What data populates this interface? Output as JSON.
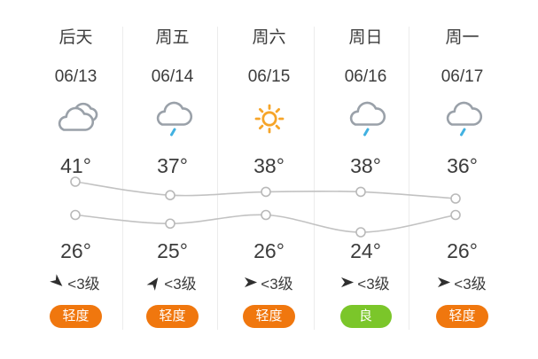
{
  "colors": {
    "badge_orange": "#f0770e",
    "badge_green": "#7bc62a",
    "rain_blue": "#41b1e1",
    "sun_orange": "#f6a529",
    "cloud_gray": "#9aa1a9",
    "chart_line": "#c2c2c2",
    "text": "#3c3c3c"
  },
  "columns": [
    {
      "day": "后天",
      "date": "06/13",
      "icon": "cloudy-icon",
      "high": "41°",
      "low": "26°",
      "wind": "<3级",
      "wind_dir": "southeast",
      "aqi": {
        "label": "轻度",
        "level": "orange"
      }
    },
    {
      "day": "周五",
      "date": "06/14",
      "icon": "light-rain-icon",
      "high": "37°",
      "low": "25°",
      "wind": "<3级",
      "wind_dir": "northeast",
      "aqi": {
        "label": "轻度",
        "level": "orange"
      }
    },
    {
      "day": "周六",
      "date": "06/15",
      "icon": "sunny-icon",
      "high": "38°",
      "low": "26°",
      "wind": "<3级",
      "wind_dir": "east",
      "aqi": {
        "label": "轻度",
        "level": "orange"
      }
    },
    {
      "day": "周日",
      "date": "06/16",
      "icon": "light-rain-icon",
      "high": "38°",
      "low": "24°",
      "wind": "<3级",
      "wind_dir": "east",
      "aqi": {
        "label": "良",
        "level": "green"
      }
    },
    {
      "day": "周一",
      "date": "06/17",
      "icon": "light-rain-icon",
      "high": "36°",
      "low": "26°",
      "wind": "<3级",
      "wind_dir": "east",
      "aqi": {
        "label": "轻度",
        "level": "orange"
      }
    }
  ],
  "chart_data": {
    "type": "line",
    "categories": [
      "06/13",
      "06/14",
      "06/15",
      "06/16",
      "06/17"
    ],
    "series": [
      {
        "name": "high_temp",
        "values": [
          41,
          37,
          38,
          38,
          36
        ]
      },
      {
        "name": "low_temp",
        "values": [
          26,
          25,
          26,
          24,
          26
        ]
      }
    ],
    "title": "",
    "xlabel": "",
    "ylabel": "",
    "ylim": [
      24,
      41
    ],
    "grid": false,
    "legend": "none",
    "marker": "open-circle"
  }
}
